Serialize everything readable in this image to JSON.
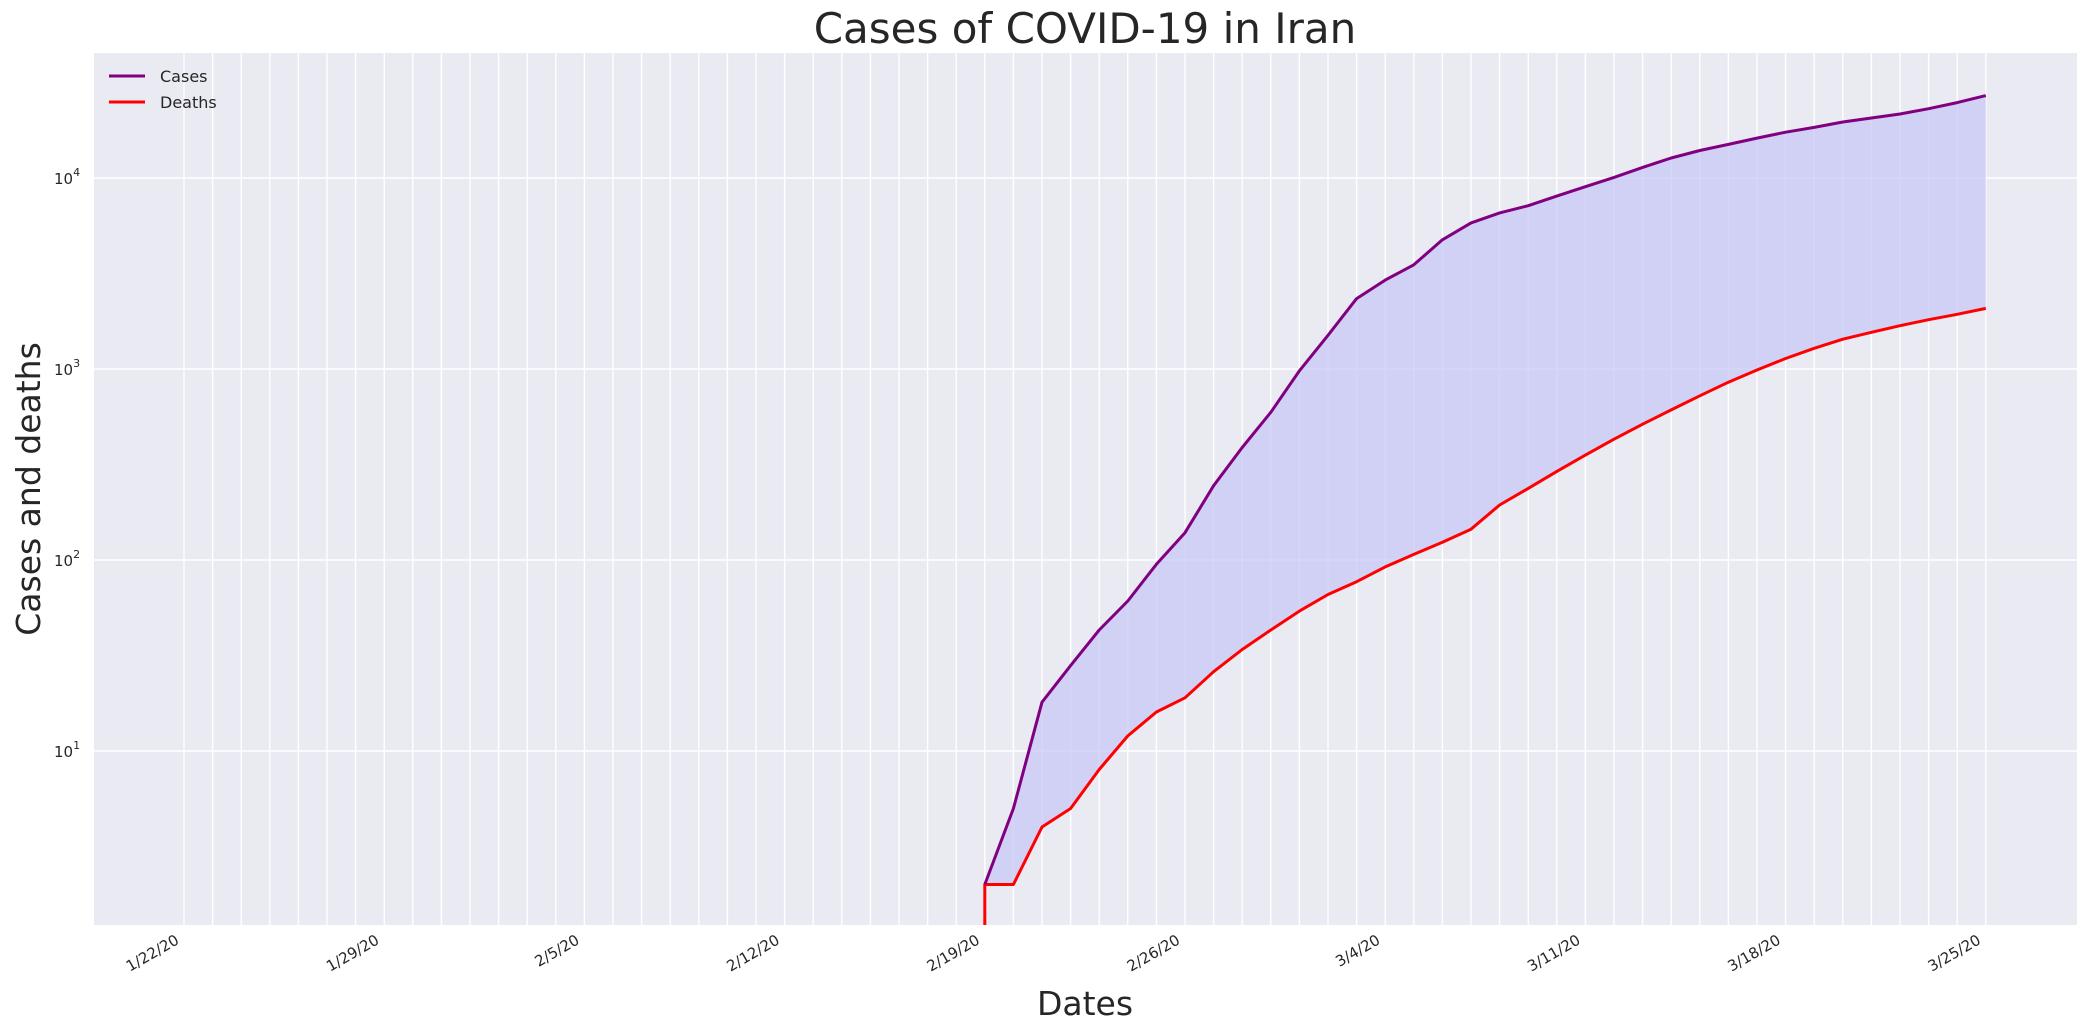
{
  "chart_data": {
    "type": "line",
    "title": "Cases of COVID-19 in Iran",
    "xlabel": "Dates",
    "ylabel": "Cases and deaths",
    "yscale": "log",
    "ylim": [
      1.2,
      45000
    ],
    "grid": true,
    "legend_position": "top-left",
    "fill_between": {
      "series": [
        "Cases",
        "Deaths"
      ],
      "color": "#c8c8f5"
    },
    "colors": {
      "Cases": "#800080",
      "Deaths": "#ff0000",
      "background": "#eaeaf2"
    },
    "x": [
      "1/22/20",
      "1/23/20",
      "1/24/20",
      "1/25/20",
      "1/26/20",
      "1/27/20",
      "1/28/20",
      "1/29/20",
      "1/30/20",
      "1/31/20",
      "2/1/20",
      "2/2/20",
      "2/3/20",
      "2/4/20",
      "2/5/20",
      "2/6/20",
      "2/7/20",
      "2/8/20",
      "2/9/20",
      "2/10/20",
      "2/11/20",
      "2/12/20",
      "2/13/20",
      "2/14/20",
      "2/15/20",
      "2/16/20",
      "2/17/20",
      "2/18/20",
      "2/19/20",
      "2/20/20",
      "2/21/20",
      "2/22/20",
      "2/23/20",
      "2/24/20",
      "2/25/20",
      "2/26/20",
      "2/27/20",
      "2/28/20",
      "2/29/20",
      "3/1/20",
      "3/2/20",
      "3/3/20",
      "3/4/20",
      "3/5/20",
      "3/6/20",
      "3/7/20",
      "3/8/20",
      "3/9/20",
      "3/10/20",
      "3/11/20",
      "3/12/20",
      "3/13/20",
      "3/14/20",
      "3/15/20",
      "3/16/20",
      "3/17/20",
      "3/18/20",
      "3/19/20",
      "3/20/20",
      "3/21/20",
      "3/22/20",
      "3/23/20",
      "3/24/20",
      "3/25/20"
    ],
    "x_tick_labels": [
      "1/22/20",
      "1/29/20",
      "2/5/20",
      "2/12/20",
      "2/19/20",
      "2/26/20",
      "3/4/20",
      "3/11/20",
      "3/18/20",
      "3/25/20"
    ],
    "y_tick_labels": [
      {
        "base": "10",
        "exp": "1",
        "value": 10
      },
      {
        "base": "10",
        "exp": "2",
        "value": 100
      },
      {
        "base": "10",
        "exp": "3",
        "value": 1000
      },
      {
        "base": "10",
        "exp": "4",
        "value": 10000
      }
    ],
    "series": [
      {
        "name": "Cases",
        "values": [
          0,
          0,
          0,
          0,
          0,
          0,
          0,
          0,
          0,
          0,
          0,
          0,
          0,
          0,
          0,
          0,
          0,
          0,
          0,
          0,
          0,
          0,
          0,
          0,
          0,
          0,
          0,
          0,
          2,
          5,
          18,
          28,
          43,
          61,
          95,
          139,
          245,
          388,
          593,
          978,
          1501,
          2336,
          2922,
          3513,
          4747,
          5823,
          6566,
          7161,
          8042,
          9000,
          10075,
          11364,
          12729,
          13938,
          14991,
          16169,
          17361,
          18407,
          19644,
          20610,
          21638,
          23049,
          24811,
          27017
        ]
      },
      {
        "name": "Deaths",
        "values": [
          0,
          0,
          0,
          0,
          0,
          0,
          0,
          0,
          0,
          0,
          0,
          0,
          0,
          0,
          0,
          0,
          0,
          0,
          0,
          0,
          0,
          0,
          0,
          0,
          0,
          0,
          0,
          0,
          2,
          2,
          4,
          5,
          8,
          12,
          16,
          19,
          26,
          34,
          43,
          54,
          66,
          77,
          92,
          107,
          124,
          145,
          194,
          237,
          291,
          354,
          429,
          514,
          611,
          724,
          853,
          988,
          1135,
          1284,
          1433,
          1556,
          1685,
          1812,
          1934,
          2077
        ]
      }
    ]
  }
}
